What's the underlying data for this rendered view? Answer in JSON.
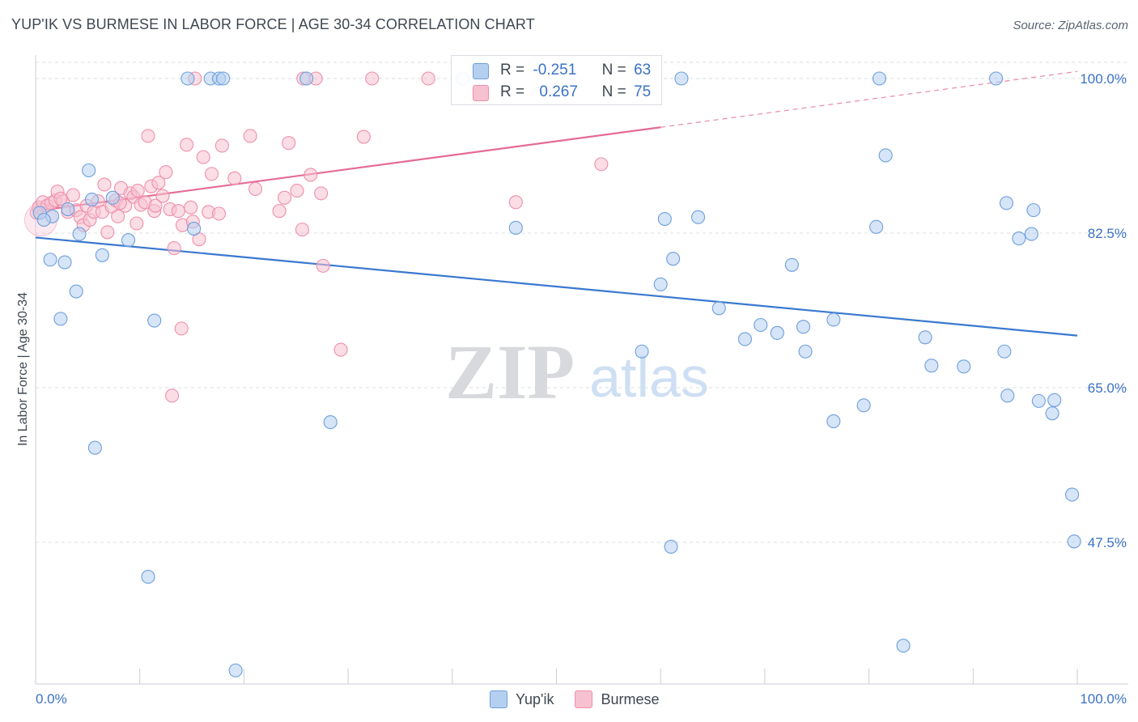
{
  "title": "YUP'IK VS BURMESE IN LABOR FORCE | AGE 30-34 CORRELATION CHART",
  "source": "Source: ZipAtlas.com",
  "watermark": {
    "zip": "ZIP",
    "atlas": "atlas"
  },
  "colors": {
    "blue_fill": "#b5cff0",
    "blue_stroke": "#6d9fdc",
    "blue_line": "#3a78d0",
    "pink_fill": "#f6c1d0",
    "pink_stroke": "#ee8fab",
    "pink_line": "#e46b95",
    "tick_text": "#3b72c4",
    "grid": "#d8dce2"
  },
  "stats": [
    {
      "r_label": "R =",
      "r_value": "-0.251",
      "n_label": "N =",
      "n_value": "63"
    },
    {
      "r_label": "R =",
      "r_value": "0.267",
      "n_label": "N =",
      "n_value": "75"
    }
  ],
  "legend": {
    "yupik": "Yup'ik",
    "burmese": "Burmese"
  },
  "chart_data": {
    "type": "scatter",
    "title": "YUP'IK VS BURMESE IN LABOR FORCE | AGE 30-34 CORRELATION CHART",
    "xlabel": "",
    "ylabel": "In Labor Force | Age 30-34",
    "xlim": [
      0,
      100
    ],
    "ylim": [
      31,
      102
    ],
    "x_tick_labels": [
      "0.0%",
      "100.0%"
    ],
    "y_ticks": [
      {
        "value": 100.0,
        "label": "100.0%"
      },
      {
        "value": 82.5,
        "label": "82.5%"
      },
      {
        "value": 65.0,
        "label": "65.0%"
      },
      {
        "value": 47.5,
        "label": "47.5%"
      }
    ],
    "series": [
      {
        "name": "Yup'ik",
        "r": -0.251,
        "n": 63,
        "trend": {
          "x0": 0,
          "y0": 82.0,
          "x1": 100,
          "y1": 70.9,
          "dashed_from": null
        },
        "points": [
          [
            0.4,
            84.8
          ],
          [
            1.6,
            84.4
          ],
          [
            0.8,
            84.0
          ],
          [
            1.4,
            79.5
          ],
          [
            2.4,
            72.8
          ],
          [
            2.8,
            79.2
          ],
          [
            3.1,
            85.2
          ],
          [
            3.9,
            75.9
          ],
          [
            4.2,
            82.4
          ],
          [
            5.1,
            89.6
          ],
          [
            5.4,
            86.3
          ],
          [
            5.7,
            58.2
          ],
          [
            6.4,
            80.0
          ],
          [
            7.4,
            86.5
          ],
          [
            8.9,
            81.7
          ],
          [
            10.8,
            43.6
          ],
          [
            11.4,
            72.6
          ],
          [
            14.6,
            100
          ],
          [
            15.2,
            83.0
          ],
          [
            16.8,
            100
          ],
          [
            17.6,
            100
          ],
          [
            18.0,
            100
          ],
          [
            19.2,
            33.0
          ],
          [
            26.0,
            100
          ],
          [
            28.3,
            61.1
          ],
          [
            41.0,
            100
          ],
          [
            46.1,
            83.1
          ],
          [
            58.2,
            69.1
          ],
          [
            61.0,
            47.0
          ],
          [
            62.0,
            100
          ],
          [
            60.0,
            76.7
          ],
          [
            60.4,
            84.1
          ],
          [
            61.2,
            79.6
          ],
          [
            63.6,
            84.3
          ],
          [
            65.6,
            74.0
          ],
          [
            68.1,
            70.5
          ],
          [
            69.6,
            72.1
          ],
          [
            71.2,
            71.2
          ],
          [
            72.6,
            78.9
          ],
          [
            73.7,
            71.9
          ],
          [
            73.9,
            69.1
          ],
          [
            76.6,
            61.2
          ],
          [
            76.6,
            72.7
          ],
          [
            79.5,
            63.0
          ],
          [
            80.7,
            83.2
          ],
          [
            81.0,
            100
          ],
          [
            81.6,
            91.3
          ],
          [
            83.3,
            35.8
          ],
          [
            85.4,
            70.7
          ],
          [
            86.0,
            67.5
          ],
          [
            89.1,
            67.4
          ],
          [
            92.2,
            100
          ],
          [
            93.0,
            69.1
          ],
          [
            93.2,
            85.9
          ],
          [
            93.3,
            64.1
          ],
          [
            94.4,
            81.9
          ],
          [
            95.6,
            82.4
          ],
          [
            95.8,
            85.1
          ],
          [
            96.3,
            63.5
          ],
          [
            97.6,
            62.1
          ],
          [
            97.8,
            63.6
          ],
          [
            99.5,
            52.9
          ],
          [
            99.7,
            47.6
          ]
        ]
      },
      {
        "name": "Burmese",
        "r": 0.267,
        "n": 75,
        "trend": {
          "x0": 0,
          "y0": 85.0,
          "x1": 100,
          "y1": 100.8,
          "dashed_from": 60
        },
        "points": [
          [
            0.1,
            84.8
          ],
          [
            0.3,
            85.4
          ],
          [
            0.7,
            86.0
          ],
          [
            1.1,
            85.6
          ],
          [
            1.5,
            85.9
          ],
          [
            1.9,
            86.2
          ],
          [
            2.1,
            87.2
          ],
          [
            2.6,
            86.1
          ],
          [
            3.1,
            84.9
          ],
          [
            3.6,
            86.8
          ],
          [
            3.9,
            85.1
          ],
          [
            4.3,
            84.3
          ],
          [
            4.6,
            83.4
          ],
          [
            4.9,
            85.6
          ],
          [
            5.2,
            84.0
          ],
          [
            5.6,
            84.9
          ],
          [
            6.0,
            86.1
          ],
          [
            6.4,
            84.9
          ],
          [
            6.6,
            88.0
          ],
          [
            6.9,
            82.6
          ],
          [
            7.3,
            85.5
          ],
          [
            7.7,
            86.2
          ],
          [
            7.9,
            84.4
          ],
          [
            8.2,
            87.6
          ],
          [
            8.6,
            85.6
          ],
          [
            9.1,
            87.0
          ],
          [
            9.4,
            86.6
          ],
          [
            9.7,
            83.6
          ],
          [
            10.1,
            85.7
          ],
          [
            10.5,
            86.0
          ],
          [
            10.8,
            93.5
          ],
          [
            11.1,
            87.8
          ],
          [
            11.4,
            85.0
          ],
          [
            11.8,
            88.2
          ],
          [
            12.2,
            86.7
          ],
          [
            12.5,
            89.4
          ],
          [
            12.9,
            85.2
          ],
          [
            13.3,
            80.8
          ],
          [
            13.7,
            85.0
          ],
          [
            14.1,
            83.4
          ],
          [
            14.5,
            92.5
          ],
          [
            14.9,
            85.4
          ],
          [
            15.1,
            83.8
          ],
          [
            15.3,
            100
          ],
          [
            15.7,
            81.8
          ],
          [
            16.1,
            91.1
          ],
          [
            16.6,
            84.9
          ],
          [
            16.9,
            89.2
          ],
          [
            17.6,
            84.7
          ],
          [
            17.9,
            92.4
          ],
          [
            19.1,
            88.7
          ],
          [
            20.6,
            93.5
          ],
          [
            21.1,
            87.5
          ],
          [
            23.4,
            85.0
          ],
          [
            23.9,
            86.5
          ],
          [
            24.3,
            92.7
          ],
          [
            25.1,
            87.3
          ],
          [
            25.6,
            82.9
          ],
          [
            25.7,
            100
          ],
          [
            26.4,
            89.1
          ],
          [
            26.9,
            100
          ],
          [
            27.4,
            87.0
          ],
          [
            27.6,
            78.8
          ],
          [
            29.3,
            69.3
          ],
          [
            31.5,
            93.4
          ],
          [
            32.3,
            100
          ],
          [
            37.7,
            100
          ],
          [
            46.1,
            86.0
          ],
          [
            54.3,
            90.3
          ],
          [
            13.1,
            64.1
          ],
          [
            14.0,
            71.7
          ],
          [
            11.5,
            85.6
          ],
          [
            2.4,
            86.4
          ],
          [
            8.1,
            85.9
          ],
          [
            9.8,
            87.3
          ]
        ]
      }
    ]
  }
}
